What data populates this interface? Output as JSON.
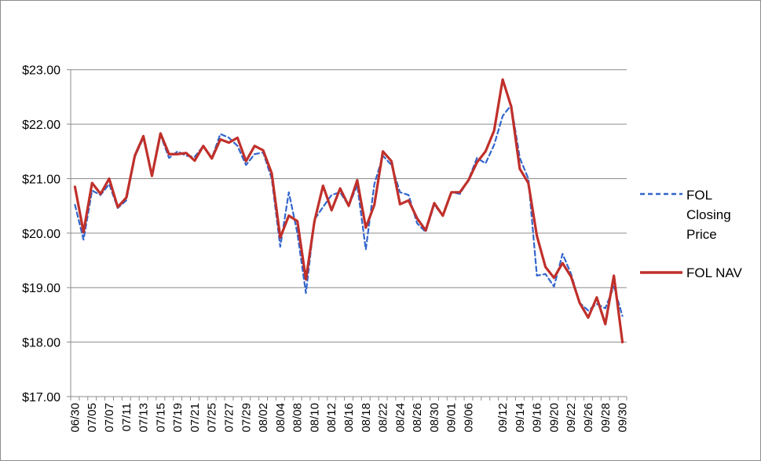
{
  "chart_data": {
    "type": "line",
    "title": "",
    "xlabel": "",
    "ylabel": "",
    "ylim": [
      17,
      23.5
    ],
    "yticks": [
      17,
      18,
      19,
      20,
      21,
      22,
      23
    ],
    "ytick_labels": [
      "$17.00",
      "$18.00",
      "$19.00",
      "$20.00",
      "$21.00",
      "$22.00",
      "$23.00"
    ],
    "grid": "horizontal",
    "legend_position": "right",
    "x": [
      "06/30",
      "07/01",
      "07/05",
      "07/06",
      "07/07",
      "07/08",
      "07/11",
      "07/12",
      "07/13",
      "07/14",
      "07/15",
      "07/18",
      "07/19",
      "07/20",
      "07/21",
      "07/22",
      "07/25",
      "07/26",
      "07/27",
      "07/28",
      "07/29",
      "08/01",
      "08/02",
      "08/03",
      "08/04",
      "08/05",
      "08/08",
      "08/09",
      "08/10",
      "08/11",
      "08/12",
      "08/15",
      "08/16",
      "08/17",
      "08/18",
      "08/19",
      "08/22",
      "08/23",
      "08/24",
      "08/25",
      "08/26",
      "08/29",
      "08/30",
      "08/31",
      "09/01",
      "09/02",
      "09/06",
      "09/07",
      "09/08",
      "09/09",
      "09/12",
      "09/13",
      "09/14",
      "09/15",
      "09/16",
      "09/19",
      "09/20",
      "09/21",
      "09/22",
      "09/23",
      "09/26",
      "09/27",
      "09/28",
      "09/29",
      "09/30"
    ],
    "xtick_labels": [
      "06/30",
      "07/05",
      "07/07",
      "07/11",
      "07/13",
      "07/15",
      "07/19",
      "07/21",
      "07/25",
      "07/27",
      "07/29",
      "08/02",
      "08/04",
      "08/08",
      "08/10",
      "08/12",
      "08/16",
      "08/18",
      "08/22",
      "08/24",
      "08/26",
      "08/30",
      "09/01",
      "09/06",
      "09/12",
      "09/14",
      "09/16",
      "09/20",
      "09/22",
      "09/26",
      "09/28",
      "09/30"
    ],
    "series": [
      {
        "name": "FOL Closing Price",
        "style": "dashed",
        "color": "#3366cc",
        "values": [
          20.52,
          19.88,
          20.78,
          20.7,
          20.9,
          20.46,
          20.6,
          21.4,
          21.75,
          21.05,
          21.8,
          21.38,
          21.5,
          21.42,
          21.4,
          21.6,
          21.38,
          21.82,
          21.75,
          21.6,
          21.25,
          21.45,
          21.48,
          21.0,
          19.75,
          20.75,
          20.0,
          18.9,
          20.25,
          20.48,
          20.7,
          20.75,
          20.5,
          20.88,
          19.7,
          20.9,
          21.42,
          21.25,
          20.75,
          20.7,
          20.18,
          20.02,
          20.52,
          20.32,
          20.75,
          20.72,
          20.98,
          21.38,
          21.28,
          21.62,
          22.15,
          22.35,
          21.38,
          21.0,
          19.22,
          19.25,
          19.02,
          19.62,
          19.25,
          18.72,
          18.58,
          18.7,
          18.62,
          19.02,
          18.48
        ]
      },
      {
        "name": "FOL NAV",
        "style": "solid",
        "color": "#c0302b",
        "values": [
          20.85,
          20.02,
          20.92,
          20.72,
          21.0,
          20.48,
          20.65,
          21.42,
          21.78,
          21.05,
          21.83,
          21.45,
          21.45,
          21.47,
          21.33,
          21.6,
          21.37,
          21.72,
          21.66,
          21.75,
          21.32,
          21.6,
          21.52,
          21.1,
          19.92,
          20.32,
          20.22,
          19.15,
          20.22,
          20.87,
          20.42,
          20.82,
          20.5,
          20.97,
          20.1,
          20.52,
          21.5,
          21.32,
          20.53,
          20.6,
          20.27,
          20.05,
          20.55,
          20.32,
          20.75,
          20.75,
          20.97,
          21.3,
          21.5,
          21.88,
          22.82,
          22.32,
          21.18,
          20.92,
          19.95,
          19.38,
          19.18,
          19.45,
          19.2,
          18.72,
          18.45,
          18.82,
          18.33,
          19.22,
          18.0
        ]
      }
    ]
  }
}
